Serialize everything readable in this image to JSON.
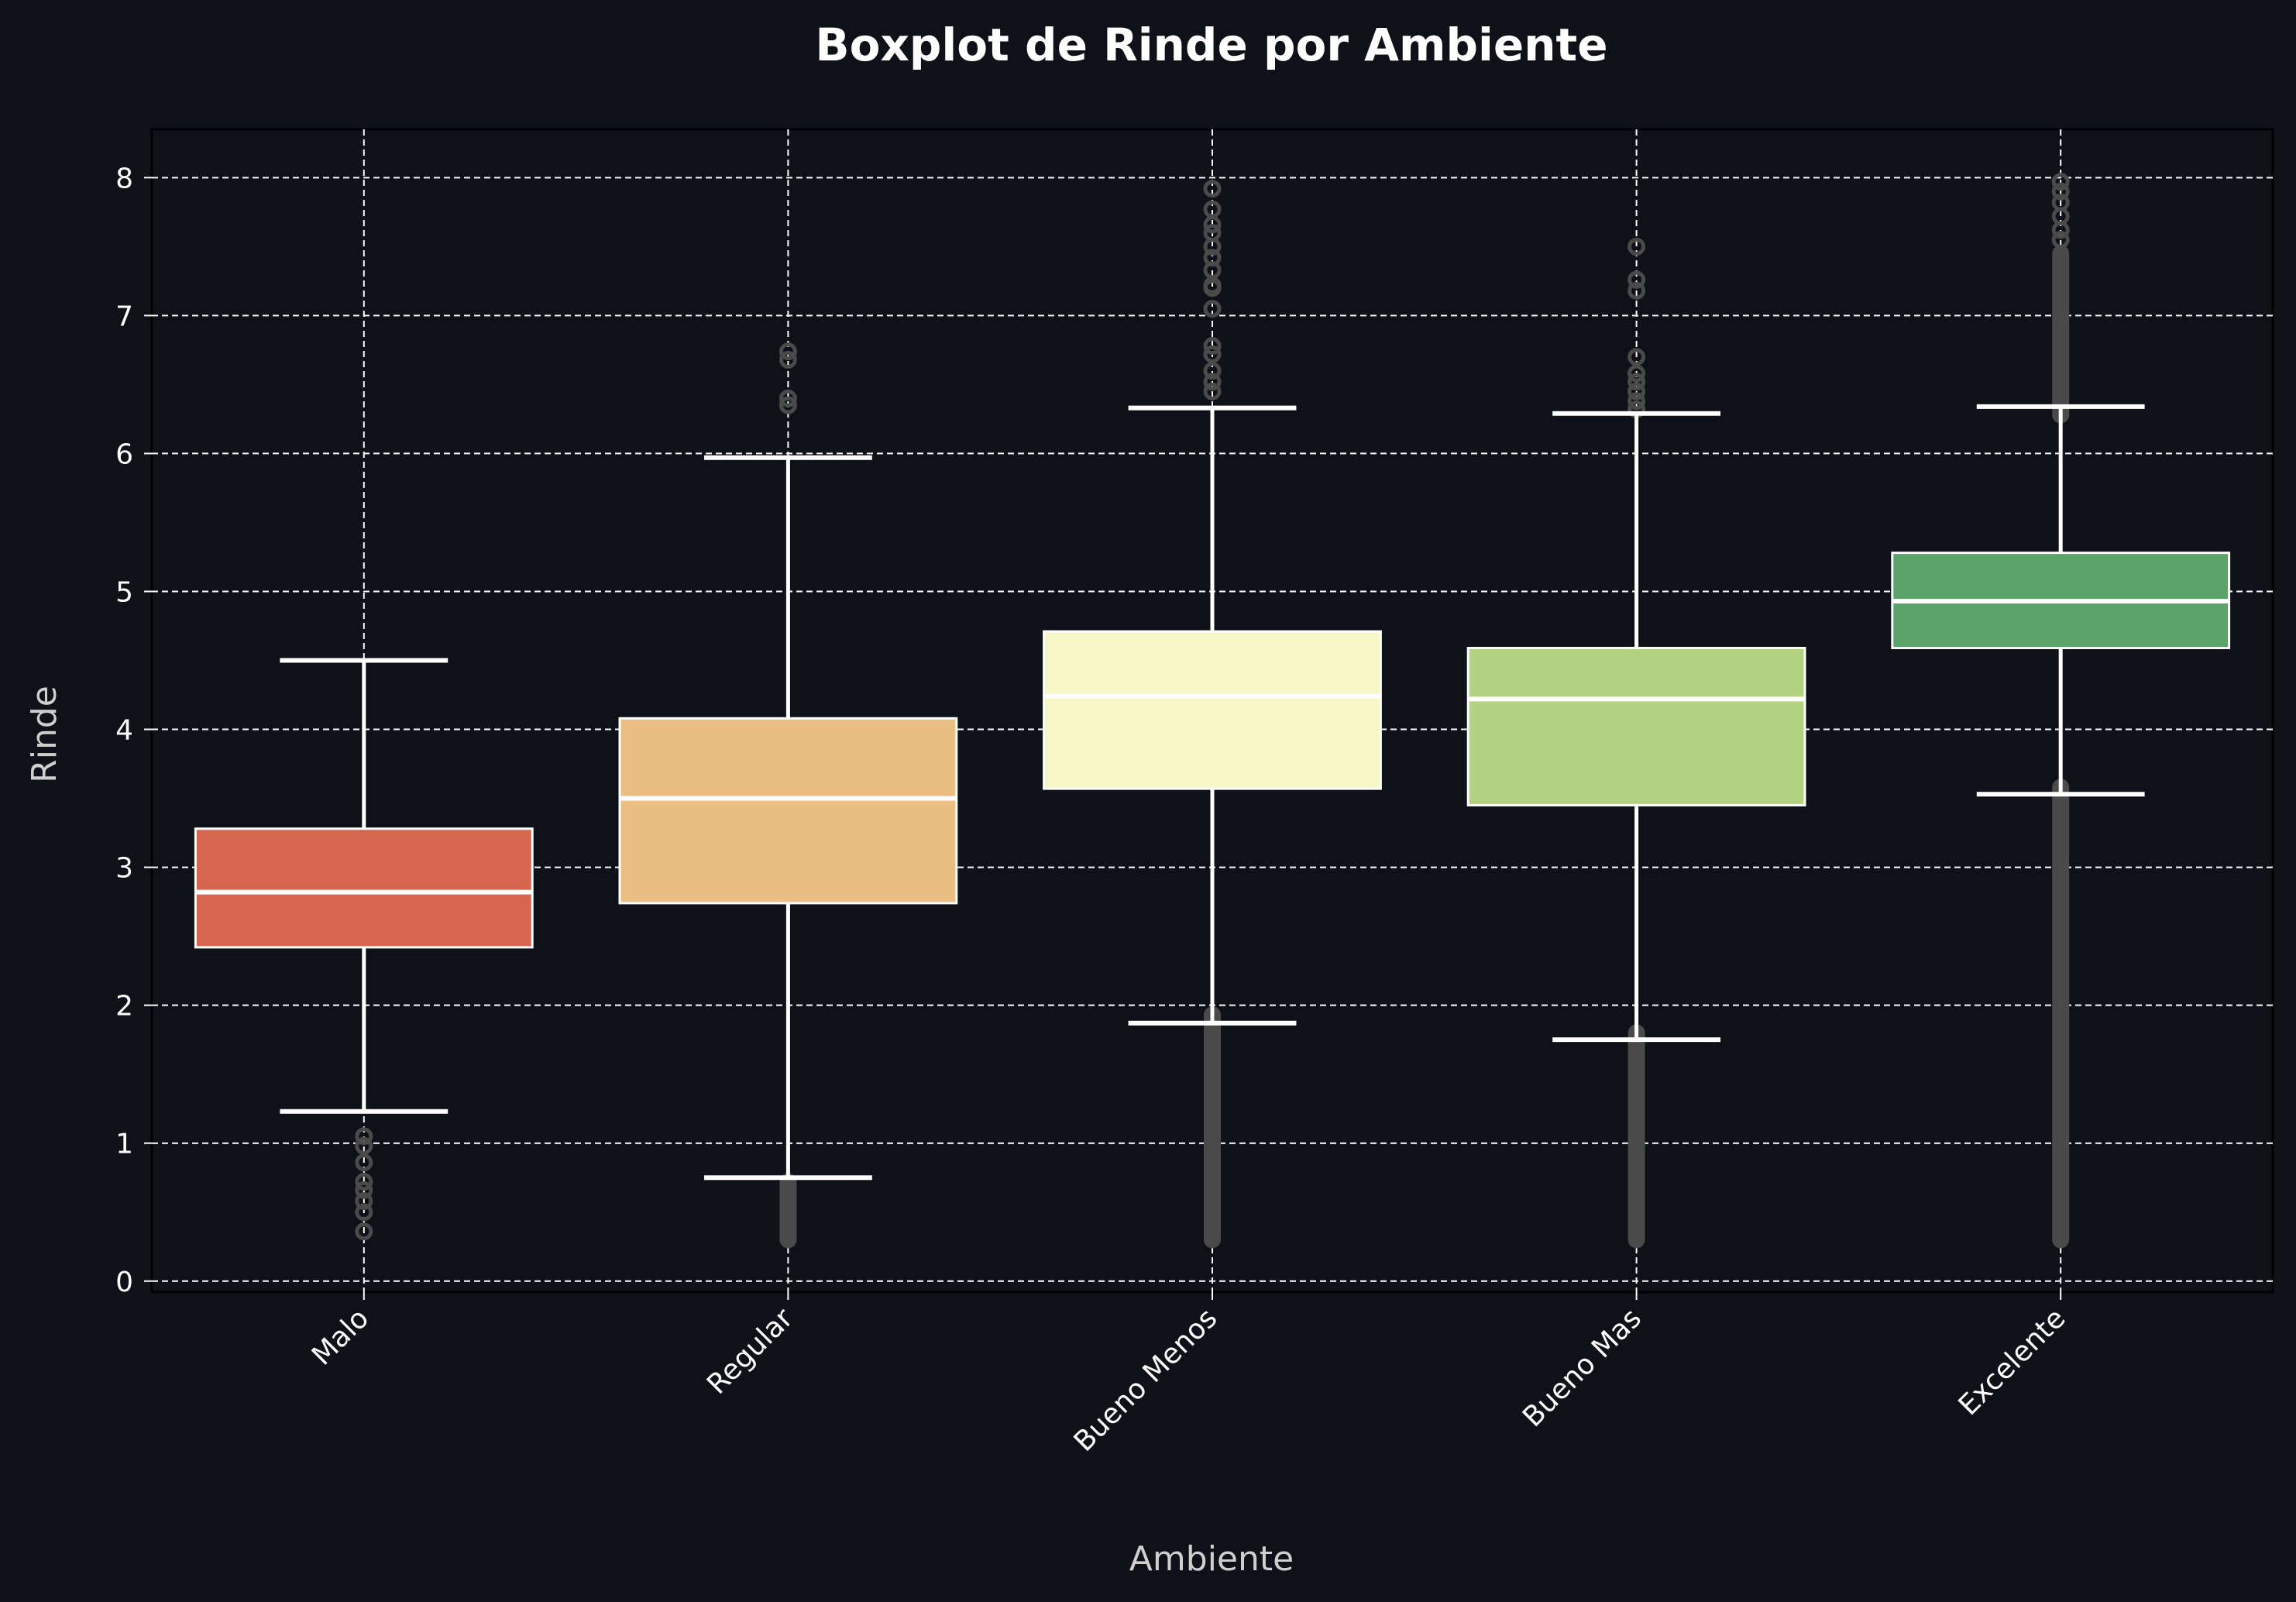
{
  "chart_data": {
    "type": "box",
    "title": "Boxplot de Rinde por Ambiente",
    "xlabel": "Ambiente",
    "ylabel": "Rinde",
    "ylim": [
      -0.08,
      8.35
    ],
    "yticks": [
      0,
      1,
      2,
      3,
      4,
      5,
      6,
      7,
      8
    ],
    "grid": true,
    "categories": [
      "Malo",
      "Regular",
      "Bueno Menos",
      "Bueno Mas",
      "Excelente"
    ],
    "boxes": [
      {
        "category": "Malo",
        "color": "#d6664f",
        "whisker_low": 1.23,
        "q1": 2.42,
        "median": 2.82,
        "q3": 3.28,
        "whisker_high": 4.5,
        "outliers": [
          0.36,
          0.5,
          0.58,
          0.66,
          0.72,
          0.86,
          0.98,
          1.05
        ]
      },
      {
        "category": "Regular",
        "color": "#ebbe83",
        "whisker_low": 0.75,
        "q1": 2.74,
        "median": 3.5,
        "q3": 4.08,
        "whisker_high": 5.97,
        "outliers": [
          6.35,
          6.4,
          6.68,
          6.74
        ],
        "outlier_dense": [
          0.3,
          0.72
        ]
      },
      {
        "category": "Bueno Menos",
        "color": "#f5f7c6",
        "whisker_low": 1.87,
        "q1": 3.57,
        "median": 4.24,
        "q3": 4.71,
        "whisker_high": 6.33,
        "outliers": [
          6.45,
          6.52,
          6.6,
          6.72,
          6.78,
          7.05,
          7.2,
          7.22,
          7.33,
          7.42,
          7.5,
          7.6,
          7.66,
          7.77,
          7.92
        ],
        "outlier_dense": [
          0.3,
          1.93
        ]
      },
      {
        "category": "Bueno Mas",
        "color": "#b3d383",
        "whisker_low": 1.75,
        "q1": 3.45,
        "median": 4.22,
        "q3": 4.59,
        "whisker_high": 6.29,
        "outliers": [
          6.32,
          6.38,
          6.45,
          6.52,
          6.58,
          6.7,
          7.18,
          7.26,
          7.5
        ],
        "outlier_dense": [
          0.3,
          1.8
        ]
      },
      {
        "category": "Excelente",
        "color": "#5ba368",
        "whisker_low": 3.53,
        "q1": 4.59,
        "median": 4.93,
        "q3": 5.28,
        "whisker_high": 6.34,
        "outliers": [
          7.55,
          7.62,
          7.72,
          7.82,
          7.9,
          7.97
        ],
        "outlier_dense": [
          0.3,
          3.58
        ],
        "outlier_dense_high": [
          6.28,
          7.45
        ]
      }
    ]
  }
}
